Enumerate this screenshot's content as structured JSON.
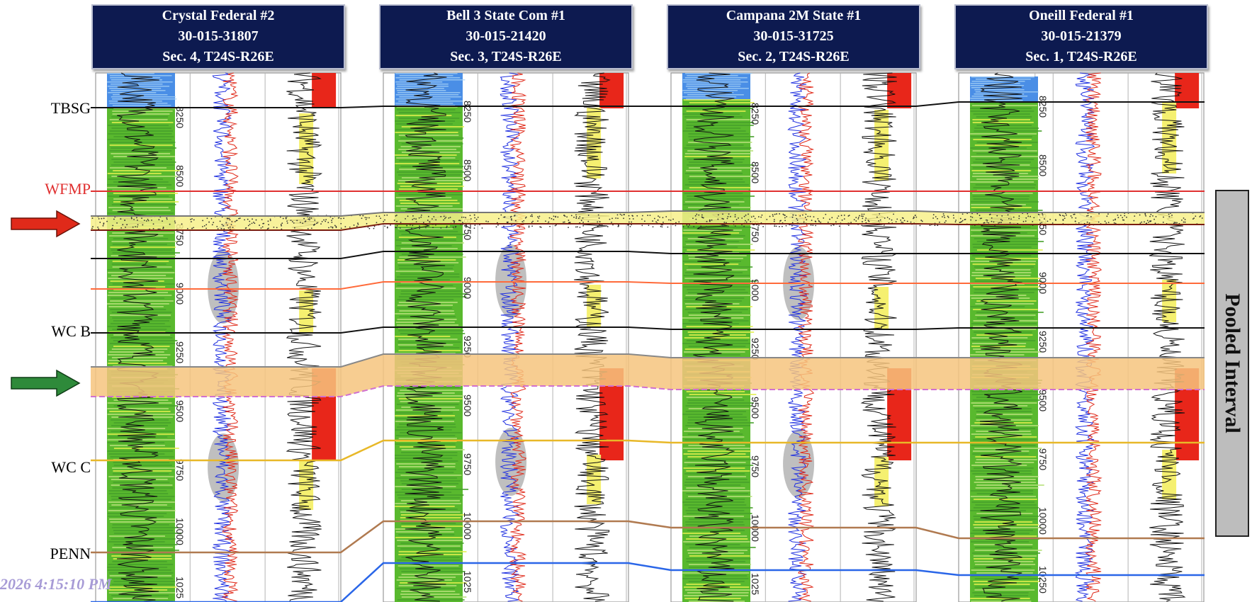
{
  "wells": [
    {
      "name": "Crystal Federal #2",
      "api": "30-015-31807",
      "location": "Sec. 4, T24S-R26E",
      "depth_ticks": [
        "8250",
        "8500",
        "8750",
        "9000",
        "9250",
        "9500",
        "9750",
        "10000",
        "1025"
      ]
    },
    {
      "name": "Bell 3 State Com #1",
      "api": "30-015-21420",
      "location": "Sec. 3, T24S-R26E",
      "depth_ticks": [
        "8250",
        "8500",
        "8750",
        "9000",
        "9250",
        "9500",
        "9750",
        "10000",
        "1025"
      ]
    },
    {
      "name": "Campana 2M State #1",
      "api": "30-015-31725",
      "location": "Sec. 2, T24S-R26E",
      "depth_ticks": [
        "8250",
        "8500",
        "8750",
        "9000",
        "9250",
        "9500",
        "9750",
        "10000",
        "1025"
      ]
    },
    {
      "name": "Oneill Federal #1",
      "api": "30-015-21379",
      "location": "Sec. 1, T24S-R26E",
      "depth_ticks": [
        "8250",
        "8500",
        "8750",
        "9000",
        "9250",
        "9500",
        "9750",
        "10000",
        "10250"
      ]
    }
  ],
  "formation_tops": [
    {
      "label": "TBSG",
      "color": "#111111"
    },
    {
      "label": "WFMP",
      "color": "#e03030"
    },
    {
      "label": "WC B",
      "color": "#111111"
    },
    {
      "label": "WC C",
      "color": "#111111"
    },
    {
      "label": "PENN",
      "color": "#111111"
    }
  ],
  "arrows": [
    {
      "name": "red-arrow",
      "color": "#e02a1a"
    },
    {
      "name": "green-arrow",
      "color": "#2e8a3a"
    }
  ],
  "zones": [
    {
      "name": "target-upper-zone",
      "color": "#f7f08a"
    },
    {
      "name": "target-lower-zone",
      "color": "#f6c47e"
    }
  ],
  "side_label": "Pooled Interval",
  "timestamp": "2026 4:15:10 PM"
}
